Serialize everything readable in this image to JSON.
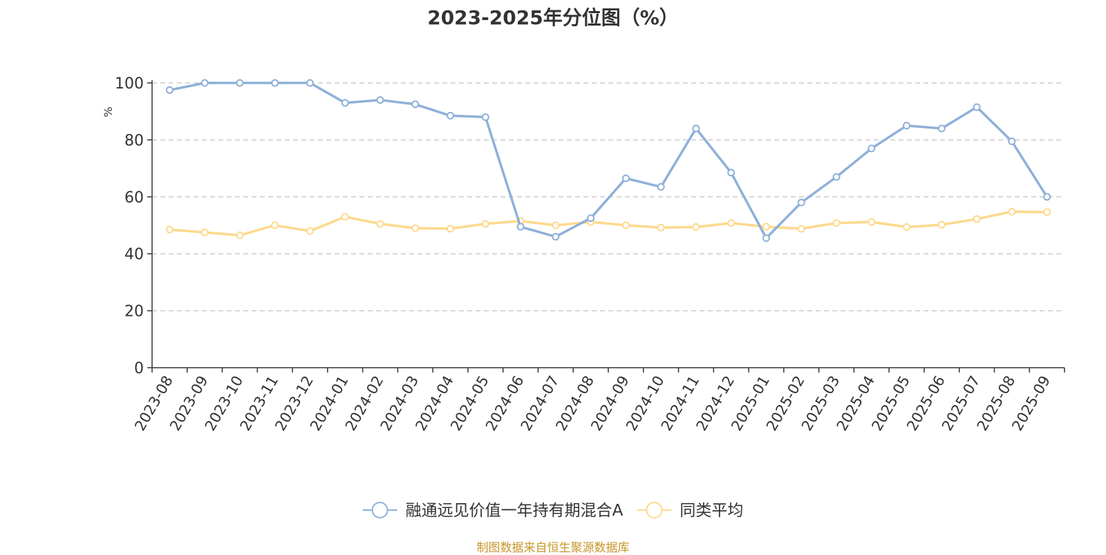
{
  "chart_data": {
    "type": "line",
    "title": "2023-2025年分位图（%）",
    "ylabel": "%",
    "xlabel": "",
    "ylim": [
      0,
      100
    ],
    "yticks": [
      0,
      20,
      40,
      60,
      80,
      100
    ],
    "grid": true,
    "legend_position": "bottom-center",
    "categories": [
      "2023-08",
      "2023-09",
      "2023-10",
      "2023-11",
      "2023-12",
      "2024-01",
      "2024-02",
      "2024-03",
      "2024-04",
      "2024-05",
      "2024-06",
      "2024-07",
      "2024-08",
      "2024-09",
      "2024-10",
      "2024-11",
      "2024-12",
      "2025-01",
      "2025-02",
      "2025-03",
      "2025-04",
      "2025-05",
      "2025-06",
      "2025-07",
      "2025-08",
      "2025-09"
    ],
    "series": [
      {
        "name": "融通远见价值一年持有期混合A",
        "color": "#8eb0d9",
        "values": [
          97.5,
          100,
          100,
          100,
          100,
          93,
          94,
          92.5,
          88.5,
          88,
          49.5,
          46,
          52.5,
          66.5,
          63.5,
          84,
          68.5,
          45.5,
          58,
          67,
          77,
          85,
          84,
          91.5,
          79.5,
          60
        ]
      },
      {
        "name": "同类平均",
        "color": "#fdd98c",
        "values": [
          48.5,
          47.5,
          46.5,
          50,
          48,
          53,
          50.5,
          49,
          48.8,
          50.5,
          51.5,
          50,
          51.2,
          50,
          49.2,
          49.4,
          50.8,
          49.5,
          48.8,
          50.8,
          51.2,
          49.4,
          50.2,
          52.2,
          54.8,
          54.6
        ]
      }
    ]
  },
  "source_note": "制图数据来自恒生聚源数据库"
}
